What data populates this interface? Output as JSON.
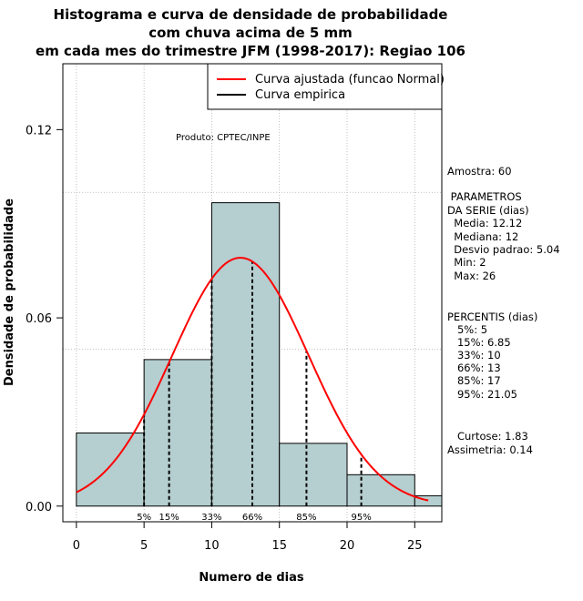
{
  "chart_data": {
    "type": "histogram",
    "title_lines": [
      "Histograma e curva de densidade de probabilidade",
      "com chuva acima de 5 mm",
      "em cada mes do trimestre JFM (1998-2017): Regiao 106"
    ],
    "xlabel": "Numero de dias",
    "ylabel": "Densidade de probabilidade",
    "xlim": [
      -1,
      27
    ],
    "ylim": [
      -0.005,
      0.141
    ],
    "x_ticks": [
      0,
      5,
      10,
      15,
      20,
      25
    ],
    "y_ticks": [
      0.0,
      0.06,
      0.12
    ],
    "y_tick_labels": [
      "0.00",
      "0.06",
      "0.12"
    ],
    "grid_x": [
      0,
      5,
      10,
      15,
      20,
      25
    ],
    "grid_y": [
      0.05,
      0.1
    ],
    "bins": [
      {
        "start": 0,
        "end": 5,
        "density": 0.0233
      },
      {
        "start": 5,
        "end": 10,
        "density": 0.0467
      },
      {
        "start": 10,
        "end": 15,
        "density": 0.0967
      },
      {
        "start": 15,
        "end": 20,
        "density": 0.02
      },
      {
        "start": 20,
        "end": 25,
        "density": 0.01
      },
      {
        "start": 25,
        "end": 27,
        "density": 0.0033
      }
    ],
    "bar_color": "#b5cecf",
    "normal_fit": {
      "mean": 12.12,
      "sd": 5.04,
      "x_start": 0,
      "x_end": 26,
      "color": "#ff0000"
    },
    "percentiles": [
      {
        "label": "5%",
        "value": 5
      },
      {
        "label": "15%",
        "value": 6.85
      },
      {
        "label": "33%",
        "value": 10
      },
      {
        "label": "66%",
        "value": 13
      },
      {
        "label": "85%",
        "value": 17
      },
      {
        "label": "95%",
        "value": 21.05
      }
    ],
    "legend": [
      {
        "label": "Curva ajustada (funcao Normal)",
        "color": "#ff0000"
      },
      {
        "label": "Curva empirica",
        "color": "#000000"
      }
    ],
    "legend_position": "top-right",
    "annotation": "Produto: CPTEC/INPE",
    "side_panel": [
      "Amostra: 60",
      " PARAMETROS",
      "DA SERIE (dias)",
      "  Media: 12.12",
      "  Mediana: 12",
      "  Desvio padrao: 5.04",
      "  Min: 2",
      "  Max: 26",
      "PERCENTIS (dias)",
      "   5%: 5",
      "   15%: 6.85",
      "   33%: 10",
      "   66%: 13",
      "   85%: 17",
      "   95%: 21.05",
      "   Curtose: 1.83",
      "Assimetria: 0.14"
    ]
  }
}
